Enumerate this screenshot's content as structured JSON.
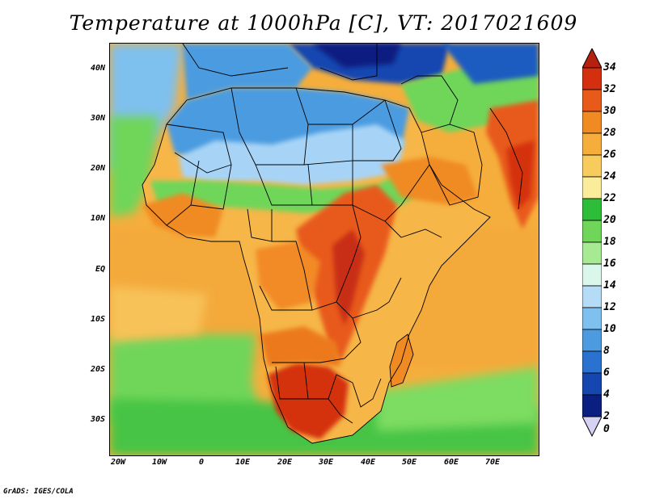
{
  "title": "Temperature at 1000hPa [C], VT: 2017021609",
  "credit": "GrADS: IGES/COLA",
  "map": {
    "lat_labels": [
      "40N",
      "30N",
      "20N",
      "10N",
      "EQ",
      "10S",
      "20S",
      "30S"
    ],
    "lon_labels": [
      "20W",
      "10W",
      "0",
      "10E",
      "20E",
      "30E",
      "40E",
      "50E",
      "60E",
      "70E"
    ]
  },
  "colorbar": {
    "labels": [
      "34",
      "32",
      "30",
      "28",
      "26",
      "24",
      "22",
      "20",
      "18",
      "16",
      "14",
      "12",
      "10",
      "8",
      "6",
      "4",
      "2",
      "0"
    ],
    "colors": [
      "#a0150f",
      "#d43010",
      "#e85a1a",
      "#f08a22",
      "#f5ae3c",
      "#f8cc5c",
      "#fbec9c",
      "#2ebd38",
      "#6fd65a",
      "#a6ea94",
      "#dbf6ea",
      "#b4dcf6",
      "#7ec0ee",
      "#4c9be0",
      "#2a72cf",
      "#1647b0",
      "#0a1f80",
      "#d6d2f4"
    ],
    "top_arrow_color": "#b5200f",
    "bottom_arrow_color": "#d6d2f4"
  }
}
